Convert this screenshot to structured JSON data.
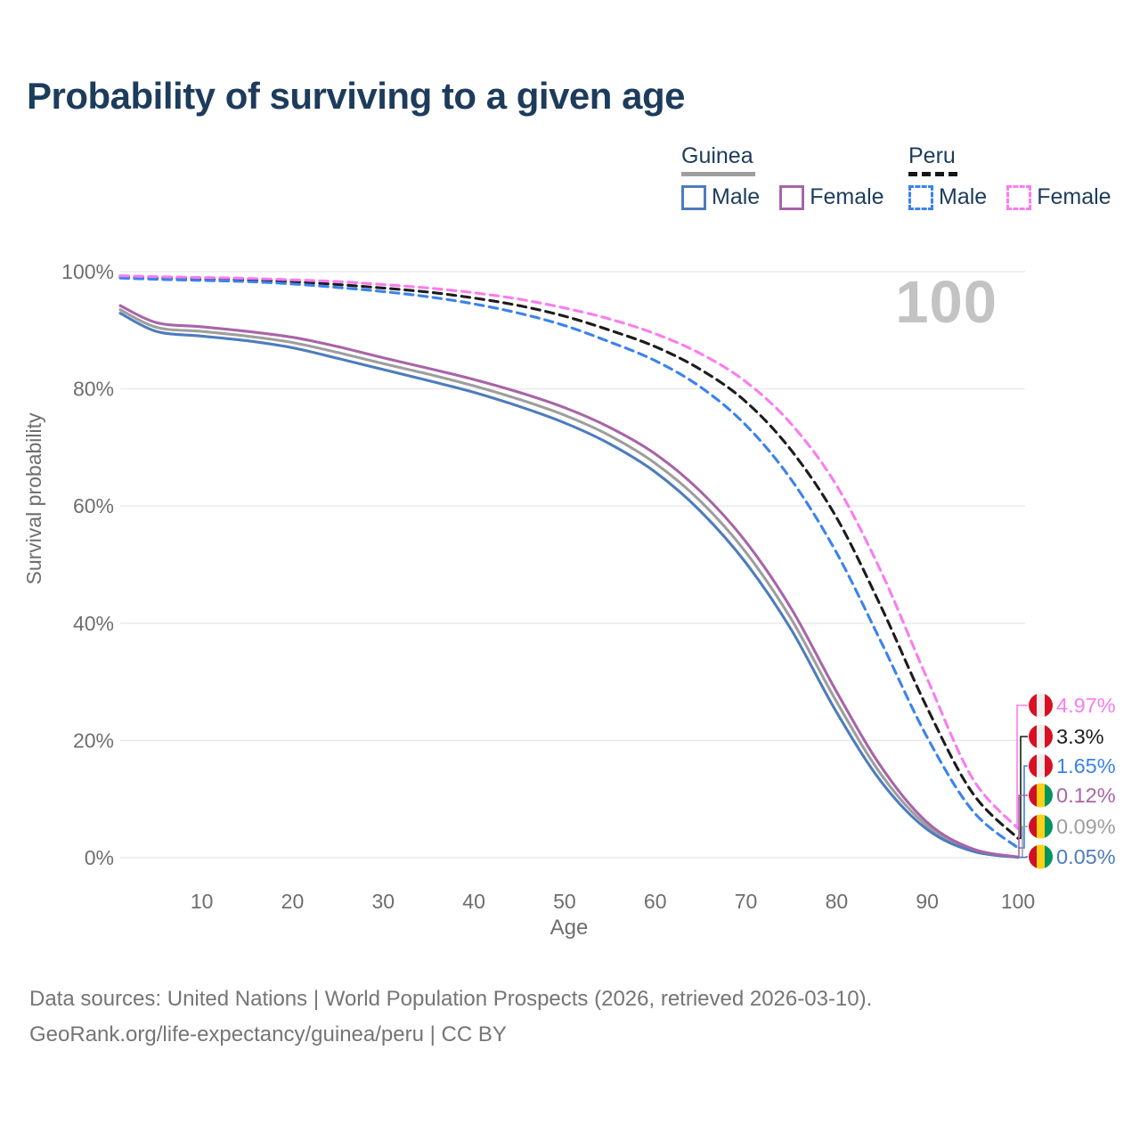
{
  "page": {
    "title": "Probability of surviving to a given age",
    "watermark": "100"
  },
  "colors": {
    "title": "#1d3c5c",
    "axis_text": "#6e6e6e",
    "grid": "#e8e8e8",
    "watermark": "#c3c3c3",
    "footer": "#757575",
    "guinea_male": "#4d7cbd",
    "guinea_female": "#a864a8",
    "guinea_both": "#9e9e9e",
    "peru_male": "#3b82ee",
    "peru_female": "#fa7cef",
    "peru_both": "#1c1c1c",
    "flag_peru_red": "#d91023",
    "flag_peru_white": "#efefef",
    "flag_guinea_red": "#ce1126",
    "flag_guinea_yellow": "#fcd116",
    "flag_guinea_green": "#009460"
  },
  "legend": {
    "groups": [
      {
        "name": "Guinea",
        "style": "solid",
        "underline_color": "#9e9e9e",
        "items": [
          {
            "label": "Male",
            "color": "#4d7cbd"
          },
          {
            "label": "Female",
            "color": "#a864a8"
          }
        ]
      },
      {
        "name": "Peru",
        "style": "dashed",
        "underline_color": "#161616",
        "items": [
          {
            "label": "Male",
            "color": "#3b82ee"
          },
          {
            "label": "Female",
            "color": "#fa7cef"
          }
        ]
      }
    ]
  },
  "footer": {
    "line1": "Data sources: United Nations | World Population Prospects (2026, retrieved 2026-03-10).",
    "line2": "GeoRank.org/life-expectancy/guinea/peru | CC BY"
  },
  "chart_data": {
    "type": "line",
    "title": "Probability of surviving to a given age",
    "xlabel": "Age",
    "ylabel": "Survival probability",
    "xlim": [
      1,
      100
    ],
    "ylim": [
      0,
      100
    ],
    "xticks": [
      10,
      20,
      30,
      40,
      50,
      60,
      70,
      80,
      90,
      100
    ],
    "yticks": [
      0,
      20,
      40,
      60,
      80,
      100
    ],
    "ytick_suffix": "%",
    "grid": "horizontal",
    "legend_position": "top-right",
    "watermark": "100",
    "x": [
      1,
      5,
      10,
      15,
      20,
      25,
      30,
      35,
      40,
      45,
      50,
      55,
      60,
      65,
      70,
      75,
      80,
      85,
      90,
      95,
      100
    ],
    "series": [
      {
        "id": "guinea_both",
        "name": "Guinea Both sexes",
        "country": "Guinea",
        "sex": "Both",
        "color": "#9e9e9e",
        "dashed": false,
        "flag": "guinea",
        "end_label": "0.09%",
        "values": [
          93.5,
          90.5,
          89.8,
          89.0,
          87.9,
          86.2,
          84.3,
          82.5,
          80.5,
          78.2,
          75.5,
          72.0,
          67.3,
          60.8,
          52.1,
          40.7,
          26.6,
          14.0,
          5.4,
          1.3,
          0.09
        ]
      },
      {
        "id": "guinea_male",
        "name": "Guinea Male",
        "country": "Guinea",
        "sex": "Male",
        "color": "#4d7cbd",
        "dashed": false,
        "flag": "guinea",
        "end_label": "0.05%",
        "values": [
          92.9,
          89.8,
          89.0,
          88.2,
          87.0,
          85.2,
          83.3,
          81.4,
          79.4,
          77.0,
          74.2,
          70.6,
          65.8,
          59.1,
          50.3,
          38.9,
          24.8,
          12.8,
          4.8,
          1.1,
          0.05
        ]
      },
      {
        "id": "guinea_female",
        "name": "Guinea Female",
        "country": "Guinea",
        "sex": "Female",
        "color": "#a864a8",
        "dashed": false,
        "flag": "guinea",
        "end_label": "0.12%",
        "values": [
          94.2,
          91.3,
          90.6,
          89.8,
          88.8,
          87.2,
          85.3,
          83.5,
          81.6,
          79.4,
          76.8,
          73.4,
          68.9,
          62.5,
          53.9,
          42.5,
          28.3,
          15.3,
          6.0,
          1.5,
          0.12
        ]
      },
      {
        "id": "peru_both",
        "name": "Peru Both sexes",
        "country": "Peru",
        "sex": "Both",
        "color": "#1c1c1c",
        "dashed": true,
        "flag": "peru",
        "end_label": "3.3%",
        "values": [
          99.1,
          98.95,
          98.8,
          98.6,
          98.3,
          97.8,
          97.2,
          96.5,
          95.5,
          94.2,
          92.4,
          90.0,
          87.2,
          83.3,
          77.8,
          69.5,
          58.0,
          42.5,
          25.5,
          11.0,
          3.3
        ]
      },
      {
        "id": "peru_male",
        "name": "Peru Male",
        "country": "Peru",
        "sex": "Male",
        "color": "#3b82ee",
        "dashed": true,
        "flag": "peru",
        "end_label": "1.65%",
        "values": [
          98.9,
          98.7,
          98.5,
          98.3,
          97.9,
          97.3,
          96.6,
          95.7,
          94.5,
          92.9,
          90.8,
          88.0,
          84.8,
          80.3,
          73.8,
          64.5,
          52.0,
          36.5,
          20.5,
          8.0,
          1.65
        ]
      },
      {
        "id": "peru_female",
        "name": "Peru Female",
        "country": "Peru",
        "sex": "Female",
        "color": "#fa7cef",
        "dashed": true,
        "flag": "peru",
        "end_label": "4.97%",
        "values": [
          99.3,
          99.15,
          99.0,
          98.85,
          98.6,
          98.3,
          97.8,
          97.2,
          96.4,
          95.3,
          93.8,
          91.9,
          89.4,
          86.0,
          81.2,
          74.0,
          63.5,
          48.5,
          30.5,
          13.5,
          4.97
        ]
      }
    ]
  }
}
